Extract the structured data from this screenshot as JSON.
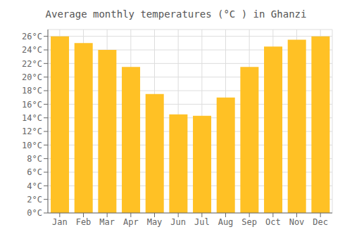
{
  "chart_data": {
    "type": "bar",
    "title": "Average monthly temperatures (°C ) in Ghanzi",
    "categories": [
      "Jan",
      "Feb",
      "Mar",
      "Apr",
      "May",
      "Jun",
      "Jul",
      "Aug",
      "Sep",
      "Oct",
      "Nov",
      "Dec"
    ],
    "values": [
      26,
      25,
      24,
      21.5,
      17.5,
      14.5,
      14.3,
      17,
      21.5,
      24.5,
      25.5,
      26
    ],
    "color": "#FFC125",
    "ylim": [
      0,
      27
    ],
    "yticks": [
      {
        "value": 0,
        "label": "0°C"
      },
      {
        "value": 2,
        "label": "2°C"
      },
      {
        "value": 4,
        "label": "4°C"
      },
      {
        "value": 6,
        "label": "6°C"
      },
      {
        "value": 8,
        "label": "8°C"
      },
      {
        "value": 10,
        "label": "10°C"
      },
      {
        "value": 12,
        "label": "12°C"
      },
      {
        "value": 14,
        "label": "14°C"
      },
      {
        "value": 16,
        "label": "16°C"
      },
      {
        "value": 18,
        "label": "18°C"
      },
      {
        "value": 20,
        "label": "20°C"
      },
      {
        "value": 22,
        "label": "22°C"
      },
      {
        "value": 24,
        "label": "24°C"
      },
      {
        "value": 26,
        "label": "26°C"
      }
    ],
    "grid": true
  }
}
